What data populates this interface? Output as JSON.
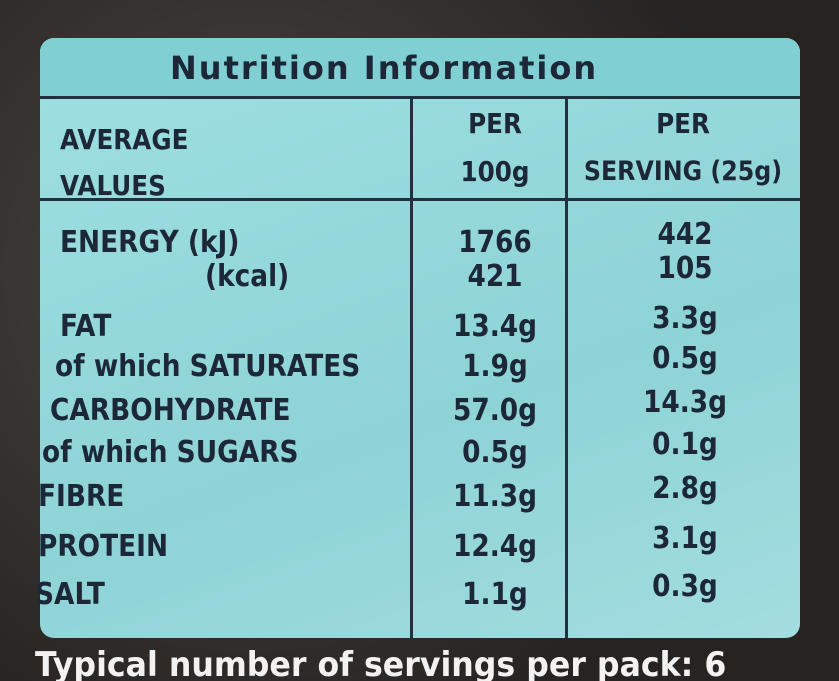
{
  "label": {
    "title": "Nutrition Information",
    "header": [
      [
        "AVERAGE",
        "VALUES"
      ],
      [
        "PER",
        "100g"
      ],
      [
        "PER",
        "SERVING (25g)"
      ]
    ],
    "rows": [
      [
        "ENERGY (kJ)",
        "1766",
        "442"
      ],
      [
        "(kcal)",
        "421",
        "105"
      ],
      [
        "FAT",
        "13.4g",
        "3.3g"
      ],
      [
        "of which SATURATES",
        "1.9g",
        "0.5g"
      ],
      [
        "CARBOHYDRATE",
        "57.0g",
        "14.3g"
      ],
      [
        "of which SUGARS",
        "0.5g",
        "0.1g"
      ],
      [
        "FIBRE",
        "11.3g",
        "2.8g"
      ],
      [
        "PROTEIN",
        "12.4g",
        "3.1g"
      ],
      [
        "SALT",
        "1.1g",
        "0.3g"
      ]
    ],
    "footer": "Typical number of servings per pack: 6"
  }
}
